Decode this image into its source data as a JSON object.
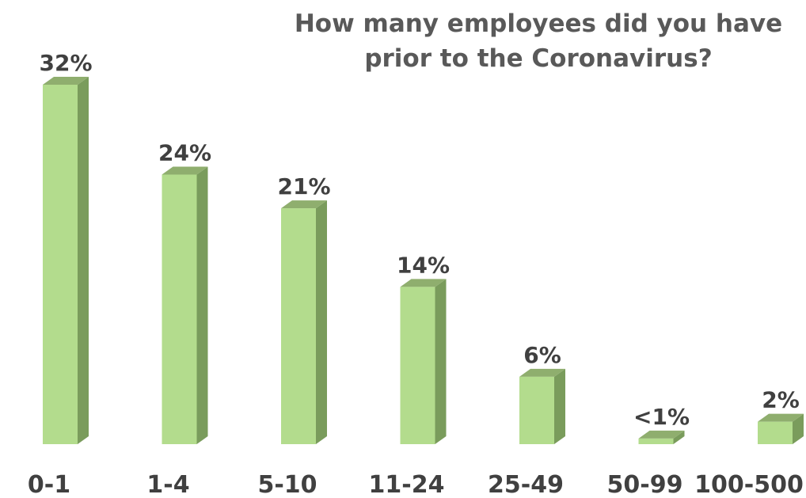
{
  "chart_data": {
    "type": "bar",
    "title": "How many employees did you have\nprior to the Coronavirus?",
    "categories": [
      "0-1",
      "1-4",
      "5-10",
      "11-24",
      "25-49",
      "50-99",
      "100-500"
    ],
    "values": [
      32,
      24,
      21,
      14,
      6,
      0.5,
      2
    ],
    "data_labels": [
      "32%",
      "24%",
      "21%",
      "14%",
      "6%",
      "<1%",
      "2%"
    ],
    "ylim": [
      0,
      32
    ],
    "grid": false,
    "legend": "none",
    "style": "3d-column",
    "colors": {
      "bar_front": "#b3dc8d",
      "bar_side": "#7a9c5c",
      "bar_top": "#8fae6e",
      "label_text": "#404040",
      "title_text": "#595959"
    }
  }
}
